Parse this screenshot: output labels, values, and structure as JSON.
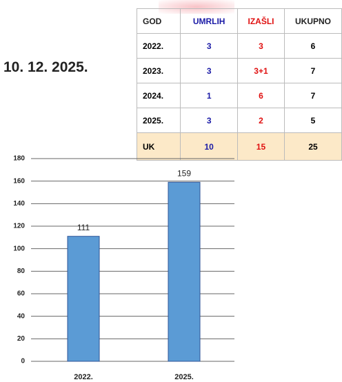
{
  "date": "10. 12. 2025.",
  "table": {
    "header": [
      "GOD",
      "UMRLIH",
      "IZAŠLI",
      "UKUPNO"
    ],
    "rows": [
      [
        "2022.",
        3,
        3,
        6
      ],
      [
        "2023.",
        3,
        "3+1",
        7
      ],
      [
        "2024.",
        1,
        6,
        7
      ],
      [
        "2025.",
        3,
        2,
        5
      ]
    ],
    "total": [
      "UK",
      10,
      15,
      25
    ]
  },
  "chart_data": {
    "type": "bar",
    "categories": [
      "2022.",
      "2025."
    ],
    "values": [
      111,
      159
    ],
    "color": "#5b9bd5",
    "ylim": [
      0,
      180
    ],
    "yticks": [
      0,
      20,
      40,
      60,
      80,
      100,
      120,
      140,
      160,
      180
    ],
    "grid": true
  }
}
